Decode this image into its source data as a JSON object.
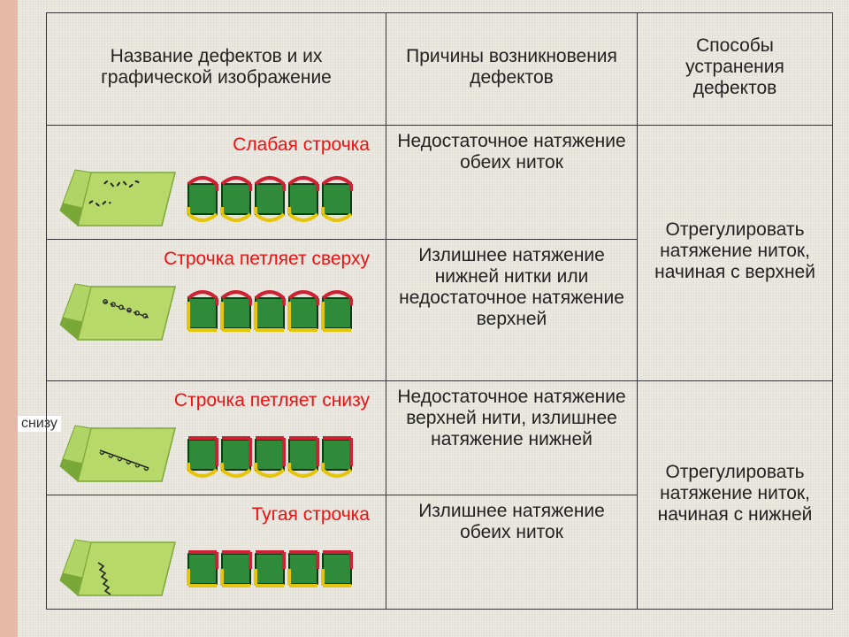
{
  "headers": {
    "col1": "Название дефектов и их графической изображение",
    "col2": "Причины возникновения дефектов",
    "col3": "Способы устранения дефектов"
  },
  "rows": [
    {
      "name": "Слабая строчка",
      "cause": "Недостаточное натяжение обеих ниток",
      "fix": "Отрегулировать натяжение ниток, начиная с верхней",
      "mergeFixDown": true,
      "diagram": {
        "topColor": "#c23",
        "bottomColor": "#e5c50a",
        "topLoose": true,
        "bottomLoose": true
      }
    },
    {
      "name": "Строчка петляет сверху",
      "cause": "Излишнее натяжение нижней нитки или недостаточное натяжение верхней",
      "fix": null,
      "diagram": {
        "topColor": "#c23",
        "bottomColor": "#e5c50a",
        "topLoose": true,
        "bottomLoose": false
      }
    },
    {
      "name": "Строчка петляет снизу",
      "cause": "Недостаточное натяжение верхней нити, излишнее натяжение нижней",
      "fix": "Отрегулировать натяжение ниток, начиная с нижней",
      "mergeFixDown": true,
      "diagram": {
        "topColor": "#c23",
        "bottomColor": "#e5c50a",
        "topLoose": false,
        "bottomLoose": true
      }
    },
    {
      "name": "Тугая строчка",
      "cause": "Излишнее натяжение обеих ниток",
      "fix": null,
      "diagram": {
        "topColor": "#c23",
        "bottomColor": "#e5c50a",
        "topLoose": false,
        "bottomLoose": false,
        "tight": true
      }
    }
  ],
  "extraLabel": "снизу",
  "colors": {
    "fabric_light": "#b6d96a",
    "fabric_dark": "#7aa838",
    "block": "#2f8a3a",
    "block_border": "#0b3d12",
    "defect_title": "#e11"
  }
}
